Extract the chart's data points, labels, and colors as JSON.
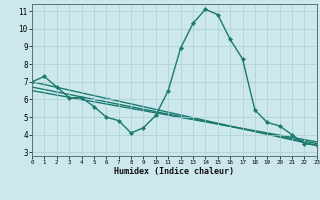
{
  "xlabel": "Humidex (Indice chaleur)",
  "background_color": "#cce8ec",
  "grid_color": "#aacdd4",
  "line_color": "#1a7a6e",
  "main_series": {
    "x": [
      0,
      1,
      2,
      3,
      4,
      5,
      6,
      7,
      8,
      9,
      10,
      11,
      12,
      13,
      14,
      15,
      16,
      17,
      18,
      19,
      20,
      21,
      22,
      23
    ],
    "y": [
      7.0,
      7.3,
      6.7,
      6.1,
      6.1,
      5.6,
      5.0,
      4.8,
      4.1,
      4.4,
      5.1,
      6.5,
      8.9,
      10.3,
      11.1,
      10.8,
      9.4,
      8.3,
      5.4,
      4.7,
      4.5,
      4.0,
      3.5,
      3.4
    ]
  },
  "trend_lines": [
    {
      "x": [
        0,
        23
      ],
      "y": [
        7.0,
        3.4
      ]
    },
    {
      "x": [
        0,
        23
      ],
      "y": [
        6.7,
        3.5
      ]
    },
    {
      "x": [
        0,
        23
      ],
      "y": [
        6.5,
        3.6
      ]
    }
  ],
  "xlim": [
    0,
    23
  ],
  "ylim": [
    2.8,
    11.4
  ],
  "xtick_values": [
    0,
    1,
    2,
    3,
    4,
    5,
    6,
    7,
    8,
    9,
    10,
    11,
    12,
    13,
    14,
    15,
    16,
    17,
    18,
    19,
    20,
    21,
    22,
    23
  ],
  "ytick_values": [
    3,
    4,
    5,
    6,
    7,
    8,
    9,
    10,
    11
  ],
  "marker": "D",
  "markersize": 2.5,
  "linewidth": 1.0
}
